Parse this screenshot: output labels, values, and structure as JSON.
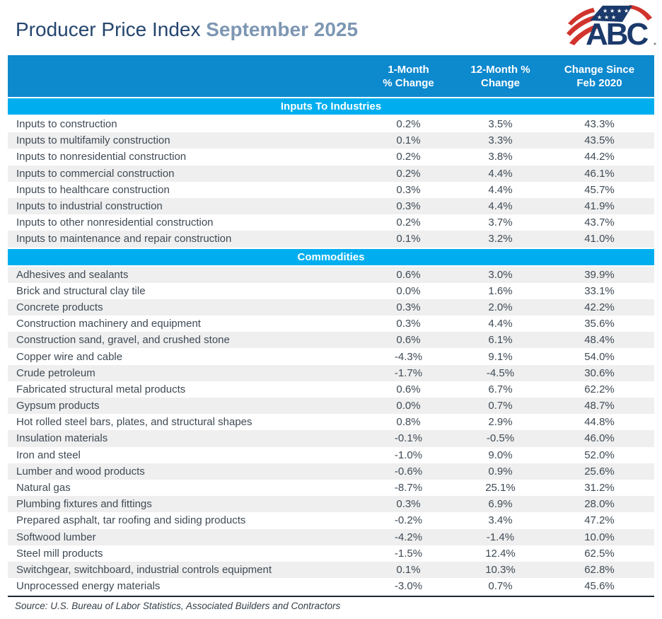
{
  "page": {
    "title": "Producer Price Index",
    "subtitle": "September 2025"
  },
  "logo": {
    "text": "ABC"
  },
  "colors": {
    "header_bar_blue": "#0d89ce",
    "section_bar_blue": "#00aeef",
    "row_shaded_gray": "#efefef",
    "title_navy": "#24456e",
    "subtitle_blue": "#7d97b3",
    "body_text": "#3f4a55",
    "logo_navy": "#1b3a6b",
    "flag_red": "#d1342c"
  },
  "chart_data": {
    "type": "table",
    "title": "Producer Price Index",
    "subtitle": "September 2025",
    "columns": [
      {
        "line1": "1-Month",
        "line2": "% Change"
      },
      {
        "line1": "12-Month %",
        "line2": "Change"
      },
      {
        "line1": "Change Since",
        "line2": "Feb 2020"
      }
    ],
    "sections": [
      {
        "label": "Inputs To Industries",
        "shaded_first": false,
        "rows": [
          [
            "Inputs to construction",
            "0.2%",
            "3.5%",
            "43.3%"
          ],
          [
            "Inputs to multifamily construction",
            "0.1%",
            "3.3%",
            "43.5%"
          ],
          [
            "Inputs to nonresidential construction",
            "0.2%",
            "3.8%",
            "44.2%"
          ],
          [
            "Inputs to commercial construction",
            "0.2%",
            "4.4%",
            "46.1%"
          ],
          [
            "Inputs to healthcare construction",
            "0.3%",
            "4.4%",
            "45.7%"
          ],
          [
            "Inputs to industrial construction",
            "0.3%",
            "4.4%",
            "41.9%"
          ],
          [
            "Inputs to other nonresidential construction",
            "0.2%",
            "3.7%",
            "43.7%"
          ],
          [
            "Inputs to maintenance and repair construction",
            "0.1%",
            "3.2%",
            "41.0%"
          ]
        ]
      },
      {
        "label": "Commodities",
        "shaded_first": true,
        "rows": [
          [
            "Adhesives and sealants",
            "0.6%",
            "3.0%",
            "39.9%"
          ],
          [
            "Brick and structural clay tile",
            "0.0%",
            "1.6%",
            "33.1%"
          ],
          [
            "Concrete products",
            "0.3%",
            "2.0%",
            "42.2%"
          ],
          [
            "Construction machinery and equipment",
            "0.3%",
            "4.4%",
            "35.6%"
          ],
          [
            "Construction sand, gravel, and crushed stone",
            "0.6%",
            "6.1%",
            "48.4%"
          ],
          [
            "Copper wire and cable",
            "-4.3%",
            "9.1%",
            "54.0%"
          ],
          [
            "Crude petroleum",
            "-1.7%",
            "-4.5%",
            "30.6%"
          ],
          [
            "Fabricated structural metal products",
            "0.6%",
            "6.7%",
            "62.2%"
          ],
          [
            "Gypsum products",
            "0.0%",
            "0.7%",
            "48.7%"
          ],
          [
            "Hot rolled steel bars, plates, and structural shapes",
            "0.8%",
            "2.9%",
            "44.8%"
          ],
          [
            "Insulation materials",
            "-0.1%",
            "-0.5%",
            "46.0%"
          ],
          [
            "Iron and steel",
            "-1.0%",
            "9.0%",
            "52.0%"
          ],
          [
            "Lumber and wood products",
            "-0.6%",
            "0.9%",
            "25.6%"
          ],
          [
            "Natural gas",
            "-8.7%",
            "25.1%",
            "31.2%"
          ],
          [
            "Plumbing fixtures and fittings",
            "0.3%",
            "6.9%",
            "28.0%"
          ],
          [
            "Prepared asphalt, tar roofing and siding products",
            "-0.2%",
            "3.4%",
            "47.2%"
          ],
          [
            "Softwood lumber",
            "-4.2%",
            "-1.4%",
            "10.0%"
          ],
          [
            "Steel mill products",
            "-1.5%",
            "12.4%",
            "62.5%"
          ],
          [
            "Switchgear, switchboard, industrial controls equipment",
            "0.1%",
            "10.3%",
            "62.8%"
          ],
          [
            "Unprocessed energy materials",
            "-3.0%",
            "0.7%",
            "45.6%"
          ]
        ]
      }
    ],
    "source_note": "Source: U.S. Bureau of Labor Statistics, Associated Builders and Contractors"
  }
}
